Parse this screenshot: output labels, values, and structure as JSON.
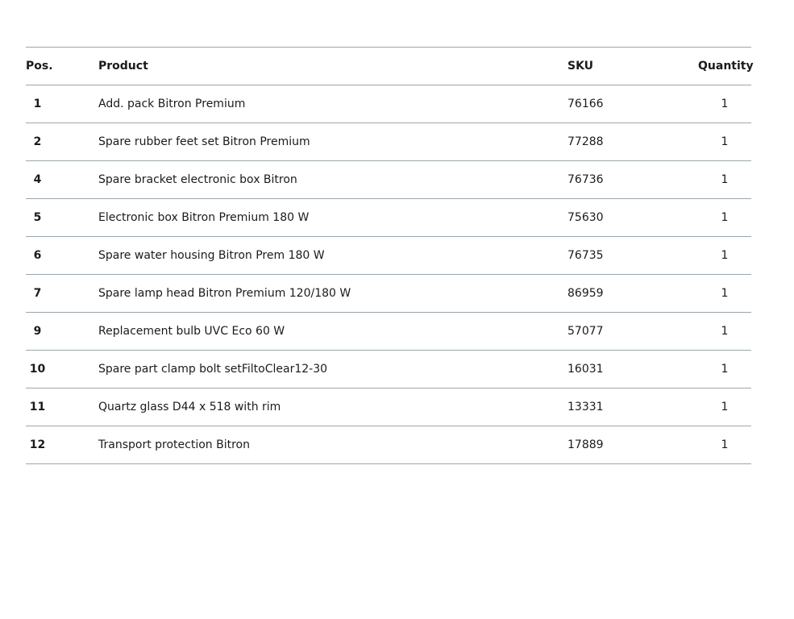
{
  "table": {
    "headers": {
      "pos": "Pos.",
      "product": "Product",
      "sku": "SKU",
      "quantity": "Quantity"
    },
    "rows": [
      {
        "pos": "1",
        "product": "Add. pack Bitron Premium",
        "sku": "76166",
        "quantity": "1"
      },
      {
        "pos": "2",
        "product": "Spare rubber feet set Bitron Premium",
        "sku": "77288",
        "quantity": "1"
      },
      {
        "pos": "4",
        "product": "Spare bracket electronic box Bitron",
        "sku": "76736",
        "quantity": "1"
      },
      {
        "pos": "5",
        "product": "Electronic box Bitron Premium 180 W",
        "sku": "75630",
        "quantity": "1"
      },
      {
        "pos": "6",
        "product": "Spare water housing Bitron Prem 180 W",
        "sku": "76735",
        "quantity": "1"
      },
      {
        "pos": "7",
        "product": "Spare lamp head Bitron Premium 120/180 W",
        "sku": "86959",
        "quantity": "1"
      },
      {
        "pos": "9",
        "product": "Replacement bulb UVC Eco 60 W",
        "sku": "57077",
        "quantity": "1"
      },
      {
        "pos": "10",
        "product": "Spare part clamp bolt setFiltoClear12-30",
        "sku": "16031",
        "quantity": "1"
      },
      {
        "pos": "11",
        "product": "Quartz glass D44 x 518 with rim",
        "sku": "13331",
        "quantity": "1"
      },
      {
        "pos": "12",
        "product": "Transport protection Bitron",
        "sku": "17889",
        "quantity": "1"
      }
    ]
  }
}
